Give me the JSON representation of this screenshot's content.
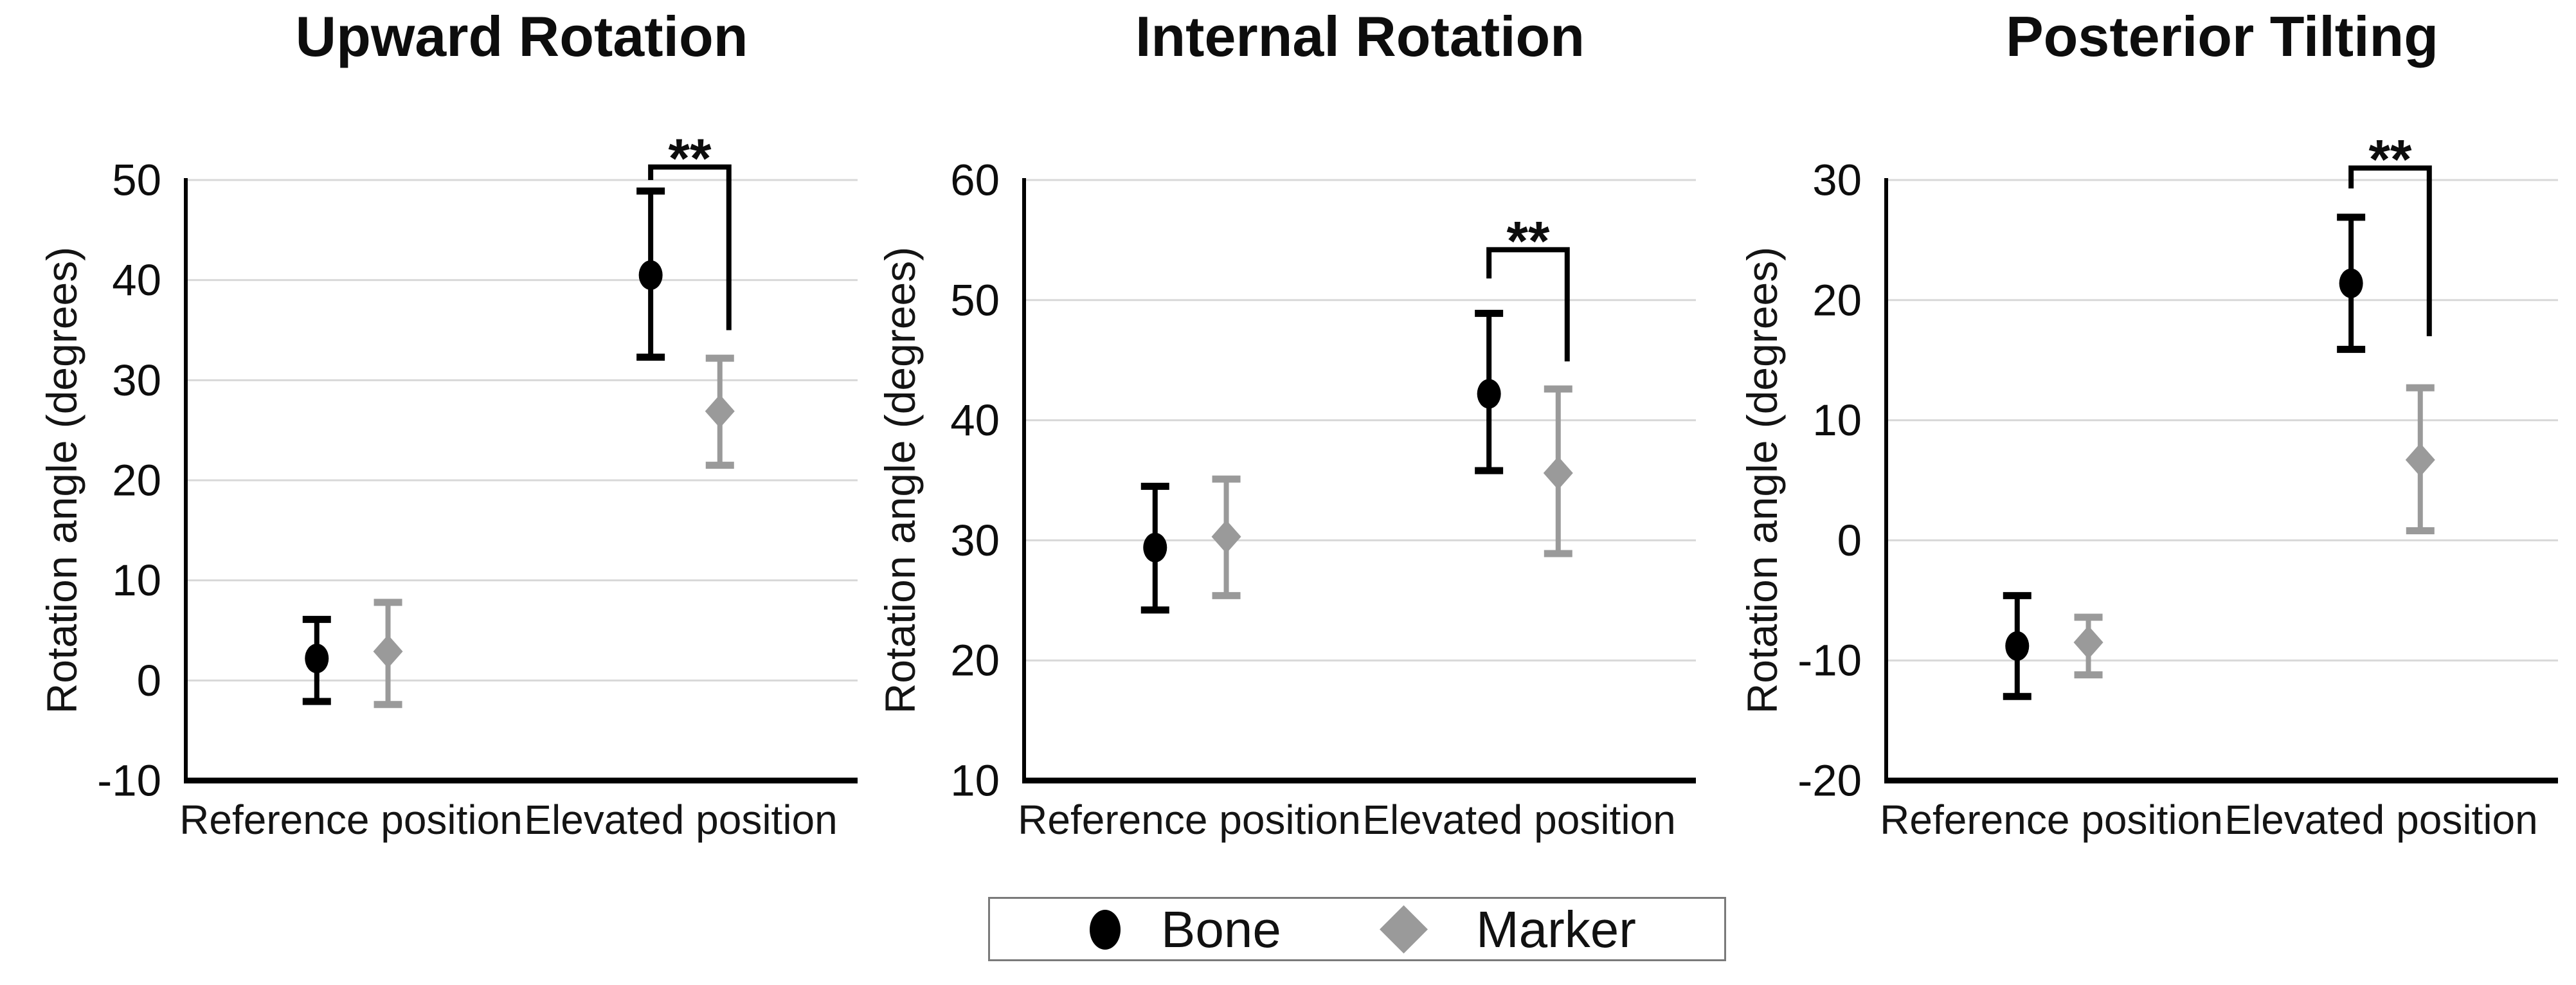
{
  "figure": {
    "background": "#ffffff",
    "accent_black": "#000000",
    "accent_gray": "#9a9a9a",
    "gridline_color": "#d8d8d8"
  },
  "legend": {
    "items": [
      {
        "label": "Bone",
        "marker": "circle-icon",
        "color": "#000000"
      },
      {
        "label": "Marker",
        "marker": "diamond-icon",
        "color": "#9a9a9a"
      }
    ]
  },
  "chart_data": [
    {
      "type": "scatter",
      "title": "Upward Rotation",
      "ylabel": "Rotation angle (degrees)",
      "ylim": [
        -10,
        50
      ],
      "yticks": [
        -10,
        0,
        10,
        20,
        30,
        40,
        50
      ],
      "grid": true,
      "categories": [
        "Reference position",
        "Elevated position"
      ],
      "series": [
        {
          "name": "Bone",
          "marker": "circle",
          "color": "#000000",
          "points": [
            {
              "category": "Reference position",
              "mean": 2.2,
              "lo": -2.1,
              "hi": 6.1
            },
            {
              "category": "Elevated position",
              "mean": 40.5,
              "lo": 32.3,
              "hi": 48.9
            }
          ]
        },
        {
          "name": "Marker",
          "marker": "diamond",
          "color": "#9a9a9a",
          "points": [
            {
              "category": "Reference position",
              "mean": 2.9,
              "lo": -2.4,
              "hi": 7.8
            },
            {
              "category": "Elevated position",
              "mean": 26.9,
              "lo": 21.5,
              "hi": 32.2
            }
          ]
        }
      ],
      "significance": {
        "label": "**",
        "category": "Elevated position",
        "bar_top": 51.3,
        "left_leg_bottom": 50.0,
        "right_leg_bottom": 35.0
      }
    },
    {
      "type": "scatter",
      "title": "Internal Rotation",
      "ylabel": "Rotation angle (degrees)",
      "ylim": [
        10,
        60
      ],
      "yticks": [
        10,
        20,
        30,
        40,
        50,
        60
      ],
      "grid": true,
      "categories": [
        "Reference position",
        "Elevated position"
      ],
      "series": [
        {
          "name": "Bone",
          "marker": "circle",
          "color": "#000000",
          "points": [
            {
              "category": "Reference position",
              "mean": 29.4,
              "lo": 24.2,
              "hi": 34.5
            },
            {
              "category": "Elevated position",
              "mean": 42.2,
              "lo": 35.8,
              "hi": 48.9
            }
          ]
        },
        {
          "name": "Marker",
          "marker": "diamond",
          "color": "#9a9a9a",
          "points": [
            {
              "category": "Reference position",
              "mean": 30.3,
              "lo": 25.4,
              "hi": 35.1
            },
            {
              "category": "Elevated position",
              "mean": 35.6,
              "lo": 28.9,
              "hi": 42.6
            }
          ]
        }
      ],
      "significance": {
        "label": "**",
        "category": "Elevated position",
        "bar_top": 54.2,
        "left_leg_bottom": 51.8,
        "right_leg_bottom": 44.9
      }
    },
    {
      "type": "scatter",
      "title": "Posterior Tilting",
      "ylabel": "Rotation angle (degrees)",
      "ylim": [
        -20,
        30
      ],
      "yticks": [
        -20,
        -10,
        0,
        10,
        20,
        30
      ],
      "grid": true,
      "categories": [
        "Reference position",
        "Elevated position"
      ],
      "series": [
        {
          "name": "Bone",
          "marker": "circle",
          "color": "#000000",
          "points": [
            {
              "category": "Reference position",
              "mean": -8.8,
              "lo": -13.0,
              "hi": -4.6
            },
            {
              "category": "Elevated position",
              "mean": 21.4,
              "lo": 15.9,
              "hi": 26.9
            }
          ]
        },
        {
          "name": "Marker",
          "marker": "diamond",
          "color": "#9a9a9a",
          "points": [
            {
              "category": "Reference position",
              "mean": -8.5,
              "lo": -11.2,
              "hi": -6.4
            },
            {
              "category": "Elevated position",
              "mean": 6.7,
              "lo": 0.8,
              "hi": 12.7
            }
          ]
        }
      ],
      "significance": {
        "label": "**",
        "category": "Elevated position",
        "bar_top": 31.0,
        "left_leg_bottom": 29.3,
        "right_leg_bottom": 17.0
      }
    }
  ]
}
